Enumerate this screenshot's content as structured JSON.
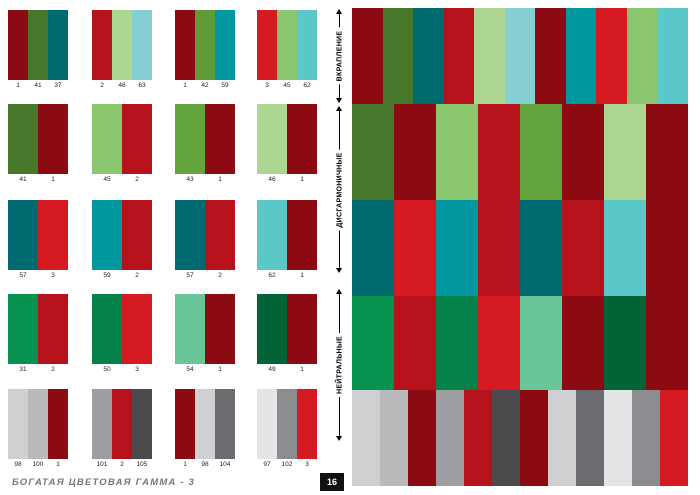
{
  "colors": {
    "1": "#8c0a12",
    "2": "#b5121b",
    "3": "#d51a22",
    "31": "#07924f",
    "37": "#006b6f",
    "41": "#46772b",
    "42": "#5f9c38",
    "43": "#64a43c",
    "45": "#8ac66e",
    "46": "#aed693",
    "49": "#026336",
    "50": "#05814a",
    "54": "#68c698",
    "57": "#006a70",
    "59": "#00979e",
    "62": "#5ac7c8",
    "63": "#86cfd2",
    "97": "#e3e4e5",
    "98": "#cfd0d2",
    "100": "#b9babc",
    "101": "#9c9ea1",
    "102": "#8a8c8f",
    "104": "#6b6c6f",
    "105": "#4b4b4d"
  },
  "swatches": [
    [
      [
        1,
        41,
        37
      ],
      [
        2,
        46,
        63
      ],
      [
        1,
        42,
        59
      ],
      [
        3,
        45,
        62
      ]
    ],
    [
      [
        41,
        1
      ],
      [
        45,
        2
      ],
      [
        43,
        1
      ],
      [
        46,
        1
      ]
    ],
    [
      [
        57,
        3
      ],
      [
        59,
        2
      ],
      [
        57,
        2
      ],
      [
        62,
        1
      ]
    ],
    [
      [
        31,
        2
      ],
      [
        50,
        3
      ],
      [
        54,
        1
      ],
      [
        49,
        1
      ]
    ],
    [
      [
        98,
        100,
        1
      ],
      [
        101,
        2,
        105
      ],
      [
        1,
        98,
        104
      ],
      [
        97,
        102,
        3
      ]
    ]
  ],
  "mosaic": [
    [
      1,
      41,
      37,
      2,
      46,
      63,
      1,
      59,
      3,
      45,
      62
    ],
    [
      41,
      1,
      45,
      2,
      43,
      1,
      46,
      1
    ],
    [
      57,
      3,
      59,
      2,
      57,
      2,
      62,
      1
    ],
    [
      31,
      2,
      50,
      3,
      54,
      1,
      49,
      1
    ],
    [
      98,
      100,
      1,
      101,
      2,
      105,
      1,
      98,
      104,
      97,
      102,
      3
    ]
  ],
  "labels": {
    "vkraplenie": "ВКРАПЛЕНИЕ",
    "disharmonic": "ДИСГАРМОНИЧНЫЕ",
    "neutral": "НЕЙТРАЛЬНЫЕ"
  },
  "footer": {
    "title": "БОГАТАЯ ЦВЕТОВАЯ ГАММА - 3",
    "page_number": "16"
  }
}
